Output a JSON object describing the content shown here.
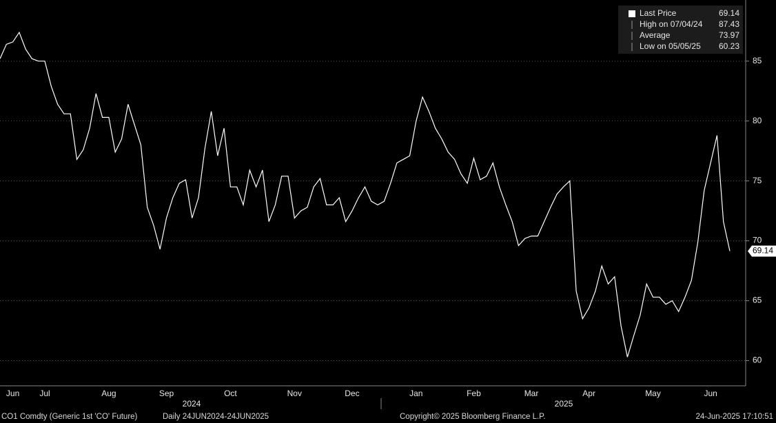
{
  "chart_data": {
    "type": "line",
    "categories": [
      null,
      null,
      "Jun",
      null,
      null,
      null,
      null,
      "Jul",
      null,
      null,
      null,
      null,
      null,
      null,
      null,
      null,
      null,
      "Aug",
      null,
      null,
      null,
      null,
      null,
      null,
      null,
      null,
      "Sep",
      null,
      null,
      null,
      null,
      null,
      null,
      null,
      null,
      null,
      "Oct",
      null,
      null,
      null,
      null,
      null,
      null,
      null,
      null,
      null,
      "Nov",
      null,
      null,
      null,
      null,
      null,
      null,
      null,
      null,
      "Dec",
      null,
      null,
      null,
      null,
      null,
      null,
      null,
      null,
      null,
      "Jan",
      null,
      null,
      null,
      null,
      null,
      null,
      null,
      null,
      "Feb",
      null,
      null,
      null,
      null,
      null,
      null,
      null,
      null,
      "Mar",
      null,
      null,
      null,
      null,
      null,
      null,
      null,
      null,
      "Apr",
      null,
      null,
      null,
      null,
      null,
      null,
      null,
      null,
      null,
      "May",
      null,
      null,
      null,
      null,
      null,
      null,
      null,
      null,
      "Jun",
      null,
      null,
      null
    ],
    "series": [
      {
        "name": "Last Price",
        "color": "#ffffff",
        "values": [
          85.2,
          86.4,
          86.6,
          87.4,
          86.0,
          85.2,
          85.0,
          85.0,
          82.9,
          81.4,
          80.6,
          80.6,
          76.8,
          77.6,
          79.4,
          82.3,
          80.3,
          80.3,
          77.4,
          78.5,
          81.4,
          79.7,
          78.0,
          72.8,
          71.3,
          69.3,
          71.9,
          73.6,
          74.8,
          75.1,
          71.9,
          73.6,
          77.7,
          80.8,
          77.1,
          79.4,
          74.5,
          74.5,
          73.0,
          75.9,
          74.5,
          75.9,
          71.6,
          73.0,
          75.4,
          75.4,
          71.9,
          72.5,
          72.8,
          74.5,
          75.2,
          73.0,
          73.0,
          73.6,
          71.6,
          72.5,
          73.6,
          74.5,
          73.3,
          73.0,
          73.3,
          74.8,
          76.5,
          76.8,
          77.1,
          80.0,
          82.0,
          80.8,
          79.4,
          78.5,
          77.4,
          76.8,
          75.6,
          74.8,
          76.9,
          75.1,
          75.4,
          76.5,
          74.5,
          73.0,
          71.6,
          69.6,
          70.2,
          70.4,
          70.4,
          71.6,
          72.8,
          73.9,
          74.5,
          75.0,
          65.8,
          63.5,
          64.4,
          65.8,
          67.9,
          66.4,
          67.0,
          62.9,
          60.3,
          62.1,
          63.8,
          66.4,
          65.3,
          65.3,
          64.7,
          65.0,
          64.1,
          65.3,
          66.7,
          69.9,
          74.2,
          76.5,
          78.8,
          71.6,
          69.14
        ]
      }
    ],
    "year_labels": [
      "2024",
      "2025"
    ],
    "ylim": [
      57.9,
      90.1
    ],
    "yticks": [
      60,
      65,
      70,
      75,
      80,
      85
    ],
    "grid": true,
    "legend": {
      "position": "top-right",
      "items": [
        {
          "label": "Last Price",
          "value": 69.14
        },
        {
          "label": "High on 07/04/24",
          "value": 87.43
        },
        {
          "label": "Average",
          "value": 73.97
        },
        {
          "label": "Low on 05/05/25",
          "value": 60.23
        }
      ]
    },
    "footer": {
      "security": "CO1 Comdty (Generic 1st 'CO' Future)",
      "range": "Daily 24JUN2024-24JUN2025",
      "copyright": "Copyright© 2025 Bloomberg Finance L.P.",
      "timestamp": "24-Jun-2025 17:10:51"
    }
  }
}
